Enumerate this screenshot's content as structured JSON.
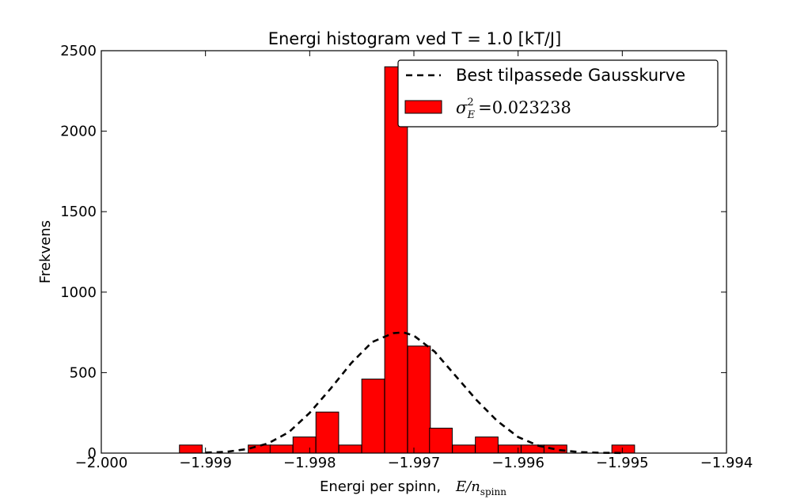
{
  "chart_data": {
    "type": "bar",
    "title": "Energi histogram ved T = 1.0 [kT/J]",
    "xlabel": "Energi per spinn,",
    "xlabel_math": {
      "main": "E/n",
      "sub": "spinn"
    },
    "ylabel": "Frekvens",
    "xlim": [
      -2.0,
      -1.994
    ],
    "ylim": [
      0,
      2500
    ],
    "xticks": [
      -2.0,
      -1.999,
      -1.998,
      -1.997,
      -1.996,
      -1.995,
      -1.994
    ],
    "xtick_labels": [
      "−2.000",
      "−1.999",
      "−1.998",
      "−1.997",
      "−1.996",
      "−1.995",
      "−1.994"
    ],
    "yticks": [
      0,
      500,
      1000,
      1500,
      2000,
      2500
    ],
    "ytick_labels": [
      "0",
      "500",
      "1000",
      "1500",
      "2000",
      "2500"
    ],
    "bin_width": 0.000218,
    "series": [
      {
        "name": "σ_E^2 =0.023238",
        "kind": "histogram",
        "color": "#ff0000",
        "edgecolor": "#000000",
        "bins": [
          {
            "left": -1.99925,
            "value": 50
          },
          {
            "left": -1.99859,
            "value": 50
          },
          {
            "left": -1.99838,
            "value": 50
          },
          {
            "left": -1.99816,
            "value": 100
          },
          {
            "left": -1.99794,
            "value": 255
          },
          {
            "left": -1.99772,
            "value": 50
          },
          {
            "left": -1.9975,
            "value": 460
          },
          {
            "left": -1.99728,
            "value": 2400
          },
          {
            "left": -1.99706,
            "value": 665
          },
          {
            "left": -1.99685,
            "value": 155
          },
          {
            "left": -1.99663,
            "value": 50
          },
          {
            "left": -1.99641,
            "value": 100
          },
          {
            "left": -1.99619,
            "value": 50
          },
          {
            "left": -1.99597,
            "value": 50
          },
          {
            "left": -1.99575,
            "value": 50
          },
          {
            "left": -1.9951,
            "value": 50
          }
        ]
      },
      {
        "name": "Best tilpassede Gausskurve",
        "kind": "line",
        "style": "dashed",
        "color": "#000000",
        "x": [
          -1.999,
          -1.9988,
          -1.9986,
          -1.9984,
          -1.9982,
          -1.998,
          -1.9978,
          -1.9976,
          -1.9974,
          -1.9972,
          -1.9971,
          -1.997,
          -1.9968,
          -1.9966,
          -1.9964,
          -1.9962,
          -1.996,
          -1.9958,
          -1.9956,
          -1.9954,
          -1.9952,
          -1.995
        ],
        "y": [
          3,
          8,
          25,
          60,
          130,
          250,
          400,
          560,
          690,
          745,
          750,
          730,
          630,
          480,
          330,
          200,
          100,
          45,
          18,
          6,
          2,
          1
        ]
      }
    ],
    "legend": {
      "placement": "top-right",
      "line_label": "Best tilpassede Gausskurve",
      "bar_label_math": {
        "sym": "σ",
        "sub": "E",
        "sup": "2",
        "rest": "=0.023238"
      }
    }
  }
}
